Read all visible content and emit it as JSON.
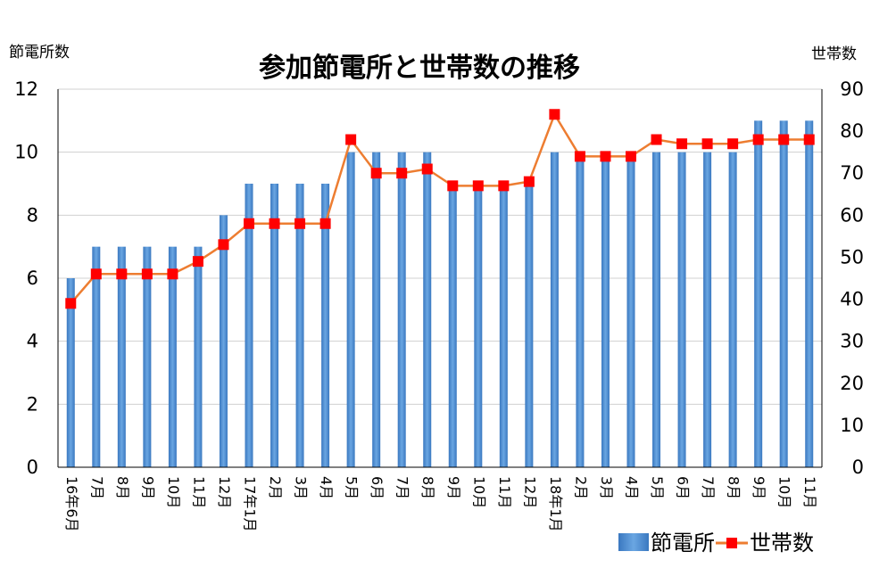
{
  "chart_data": {
    "type": "bar",
    "title": "参加節電所と世帯数の推移",
    "y_left_label": "節電所数",
    "y_right_label": "世帯数",
    "y_left_range": [
      0,
      12
    ],
    "y_left_ticks": [
      "0",
      "2",
      "4",
      "6",
      "8",
      "10",
      "12"
    ],
    "y_right_range": [
      0,
      90
    ],
    "y_right_ticks": [
      "0",
      "10",
      "20",
      "30",
      "40",
      "50",
      "60",
      "70",
      "80",
      "90"
    ],
    "grid": true,
    "legend_position": "bottom-right",
    "categories": [
      "16年6月",
      "7月",
      "8月",
      "9月",
      "10月",
      "11月",
      "12月",
      "17年1月",
      "2月",
      "3月",
      "4月",
      "5月",
      "6月",
      "7月",
      "8月",
      "9月",
      "10月",
      "11月",
      "12月",
      "18年1月",
      "2月",
      "3月",
      "4月",
      "5月",
      "6月",
      "7月",
      "8月",
      "9月",
      "10月",
      "11月"
    ],
    "series": [
      {
        "name": "節電所",
        "type": "bar",
        "axis": "left",
        "color": "#4a8fd4",
        "values": [
          6,
          7,
          7,
          7,
          7,
          7,
          8,
          9,
          9,
          9,
          9,
          10,
          10,
          10,
          10,
          9,
          9,
          9,
          9,
          10,
          10,
          10,
          10,
          10,
          10,
          10,
          10,
          11,
          11,
          11
        ]
      },
      {
        "name": "世帯数",
        "type": "line",
        "axis": "right",
        "line_color": "#ed7d31",
        "marker_color": "#ff0000",
        "values": [
          39,
          46,
          46,
          46,
          46,
          49,
          53,
          58,
          58,
          58,
          58,
          78,
          70,
          70,
          71,
          67,
          67,
          67,
          68,
          84,
          74,
          74,
          74,
          78,
          77,
          77,
          77,
          78,
          78,
          78
        ]
      }
    ]
  }
}
